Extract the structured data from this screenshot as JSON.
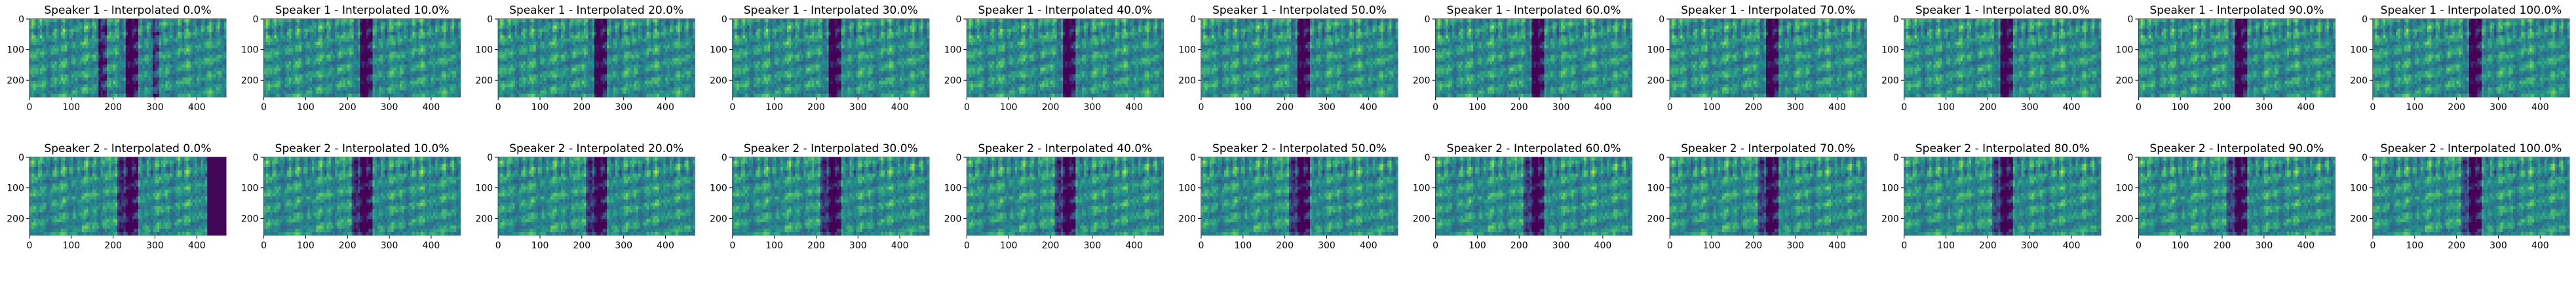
{
  "colors": {
    "background": "#ffffff",
    "axis": "#000000",
    "cmap": [
      "#440154",
      "#3b528b",
      "#21918c",
      "#5ec962",
      "#fde725"
    ]
  },
  "chart_data": [
    {
      "type": "heatmap",
      "title": "Speaker 1 - Interpolated 0.0%",
      "speaker": 1,
      "interpolation": 0.0,
      "xlim": [
        0,
        470
      ],
      "ylim": [
        255,
        0
      ],
      "xticks": [
        0,
        100,
        200,
        300,
        400
      ],
      "yticks": [
        0,
        100,
        200
      ]
    },
    {
      "type": "heatmap",
      "title": "Speaker 1 - Interpolated 10.0%",
      "speaker": 1,
      "interpolation": 0.1,
      "xlim": [
        0,
        470
      ],
      "ylim": [
        255,
        0
      ],
      "xticks": [
        0,
        100,
        200,
        300,
        400
      ],
      "yticks": [
        0,
        100,
        200
      ]
    },
    {
      "type": "heatmap",
      "title": "Speaker 1 - Interpolated 20.0%",
      "speaker": 1,
      "interpolation": 0.2,
      "xlim": [
        0,
        470
      ],
      "ylim": [
        255,
        0
      ],
      "xticks": [
        0,
        100,
        200,
        300,
        400
      ],
      "yticks": [
        0,
        100,
        200
      ]
    },
    {
      "type": "heatmap",
      "title": "Speaker 1 - Interpolated 30.0%",
      "speaker": 1,
      "interpolation": 0.3,
      "xlim": [
        0,
        470
      ],
      "ylim": [
        255,
        0
      ],
      "xticks": [
        0,
        100,
        200,
        300,
        400
      ],
      "yticks": [
        0,
        100,
        200
      ]
    },
    {
      "type": "heatmap",
      "title": "Speaker 1 - Interpolated 40.0%",
      "speaker": 1,
      "interpolation": 0.4,
      "xlim": [
        0,
        470
      ],
      "ylim": [
        255,
        0
      ],
      "xticks": [
        0,
        100,
        200,
        300,
        400
      ],
      "yticks": [
        0,
        100,
        200
      ]
    },
    {
      "type": "heatmap",
      "title": "Speaker 1 - Interpolated 50.0%",
      "speaker": 1,
      "interpolation": 0.5,
      "xlim": [
        0,
        470
      ],
      "ylim": [
        255,
        0
      ],
      "xticks": [
        0,
        100,
        200,
        300,
        400
      ],
      "yticks": [
        0,
        100,
        200
      ]
    },
    {
      "type": "heatmap",
      "title": "Speaker 1 - Interpolated 60.0%",
      "speaker": 1,
      "interpolation": 0.6,
      "xlim": [
        0,
        470
      ],
      "ylim": [
        255,
        0
      ],
      "xticks": [
        0,
        100,
        200,
        300,
        400
      ],
      "yticks": [
        0,
        100,
        200
      ]
    },
    {
      "type": "heatmap",
      "title": "Speaker 1 - Interpolated 70.0%",
      "speaker": 1,
      "interpolation": 0.7,
      "xlim": [
        0,
        470
      ],
      "ylim": [
        255,
        0
      ],
      "xticks": [
        0,
        100,
        200,
        300,
        400
      ],
      "yticks": [
        0,
        100,
        200
      ]
    },
    {
      "type": "heatmap",
      "title": "Speaker 1 - Interpolated 80.0%",
      "speaker": 1,
      "interpolation": 0.8,
      "xlim": [
        0,
        470
      ],
      "ylim": [
        255,
        0
      ],
      "xticks": [
        0,
        100,
        200,
        300,
        400
      ],
      "yticks": [
        0,
        100,
        200
      ]
    },
    {
      "type": "heatmap",
      "title": "Speaker 1 - Interpolated 90.0%",
      "speaker": 1,
      "interpolation": 0.9,
      "xlim": [
        0,
        470
      ],
      "ylim": [
        255,
        0
      ],
      "xticks": [
        0,
        100,
        200,
        300,
        400
      ],
      "yticks": [
        0,
        100,
        200
      ]
    },
    {
      "type": "heatmap",
      "title": "Speaker 1 - Interpolated 100.0%",
      "speaker": 1,
      "interpolation": 1.0,
      "xlim": [
        0,
        470
      ],
      "ylim": [
        255,
        0
      ],
      "xticks": [
        0,
        100,
        200,
        300,
        400
      ],
      "yticks": [
        0,
        100,
        200
      ]
    },
    {
      "type": "heatmap",
      "title": "Speaker 2 - Interpolated 0.0%",
      "speaker": 2,
      "interpolation": 0.0,
      "xlim": [
        0,
        470
      ],
      "ylim": [
        255,
        0
      ],
      "xticks": [
        0,
        100,
        200,
        300,
        400
      ],
      "yticks": [
        0,
        100,
        200
      ]
    },
    {
      "type": "heatmap",
      "title": "Speaker 2 - Interpolated 10.0%",
      "speaker": 2,
      "interpolation": 0.1,
      "xlim": [
        0,
        470
      ],
      "ylim": [
        255,
        0
      ],
      "xticks": [
        0,
        100,
        200,
        300,
        400
      ],
      "yticks": [
        0,
        100,
        200
      ]
    },
    {
      "type": "heatmap",
      "title": "Speaker 2 - Interpolated 20.0%",
      "speaker": 2,
      "interpolation": 0.2,
      "xlim": [
        0,
        470
      ],
      "ylim": [
        255,
        0
      ],
      "xticks": [
        0,
        100,
        200,
        300,
        400
      ],
      "yticks": [
        0,
        100,
        200
      ]
    },
    {
      "type": "heatmap",
      "title": "Speaker 2 - Interpolated 30.0%",
      "speaker": 2,
      "interpolation": 0.3,
      "xlim": [
        0,
        470
      ],
      "ylim": [
        255,
        0
      ],
      "xticks": [
        0,
        100,
        200,
        300,
        400
      ],
      "yticks": [
        0,
        100,
        200
      ]
    },
    {
      "type": "heatmap",
      "title": "Speaker 2 - Interpolated 40.0%",
      "speaker": 2,
      "interpolation": 0.4,
      "xlim": [
        0,
        470
      ],
      "ylim": [
        255,
        0
      ],
      "xticks": [
        0,
        100,
        200,
        300,
        400
      ],
      "yticks": [
        0,
        100,
        200
      ]
    },
    {
      "type": "heatmap",
      "title": "Speaker 2 - Interpolated 50.0%",
      "speaker": 2,
      "interpolation": 0.5,
      "xlim": [
        0,
        470
      ],
      "ylim": [
        255,
        0
      ],
      "xticks": [
        0,
        100,
        200,
        300,
        400
      ],
      "yticks": [
        0,
        100,
        200
      ]
    },
    {
      "type": "heatmap",
      "title": "Speaker 2 - Interpolated 60.0%",
      "speaker": 2,
      "interpolation": 0.6,
      "xlim": [
        0,
        470
      ],
      "ylim": [
        255,
        0
      ],
      "xticks": [
        0,
        100,
        200,
        300,
        400
      ],
      "yticks": [
        0,
        100,
        200
      ]
    },
    {
      "type": "heatmap",
      "title": "Speaker 2 - Interpolated 70.0%",
      "speaker": 2,
      "interpolation": 0.7,
      "xlim": [
        0,
        470
      ],
      "ylim": [
        255,
        0
      ],
      "xticks": [
        0,
        100,
        200,
        300,
        400
      ],
      "yticks": [
        0,
        100,
        200
      ]
    },
    {
      "type": "heatmap",
      "title": "Speaker 2 - Interpolated 80.0%",
      "speaker": 2,
      "interpolation": 0.8,
      "xlim": [
        0,
        470
      ],
      "ylim": [
        255,
        0
      ],
      "xticks": [
        0,
        100,
        200,
        300,
        400
      ],
      "yticks": [
        0,
        100,
        200
      ]
    },
    {
      "type": "heatmap",
      "title": "Speaker 2 - Interpolated 90.0%",
      "speaker": 2,
      "interpolation": 0.9,
      "xlim": [
        0,
        470
      ],
      "ylim": [
        255,
        0
      ],
      "xticks": [
        0,
        100,
        200,
        300,
        400
      ],
      "yticks": [
        0,
        100,
        200
      ]
    },
    {
      "type": "heatmap",
      "title": "Speaker 2 - Interpolated 100.0%",
      "speaker": 2,
      "interpolation": 1.0,
      "xlim": [
        0,
        470
      ],
      "ylim": [
        255,
        0
      ],
      "xticks": [
        0,
        100,
        200,
        300,
        400
      ],
      "yticks": [
        0,
        100,
        200
      ]
    }
  ]
}
